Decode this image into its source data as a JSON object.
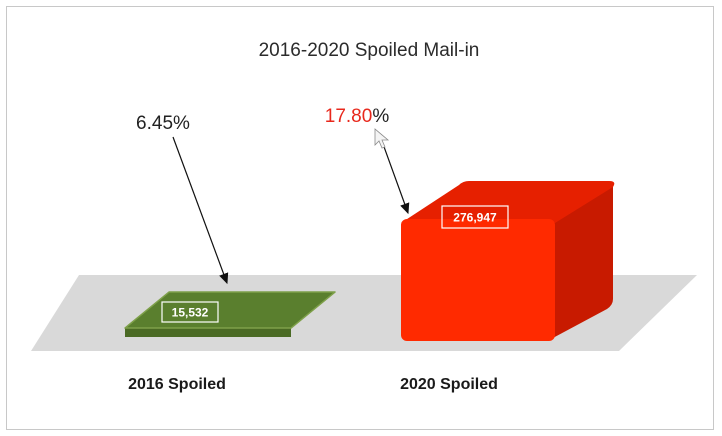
{
  "chart_data": {
    "type": "bar",
    "title": "2016-2020 Spoiled Mail-in",
    "categories": [
      "2016 Spoiled",
      "2020 Spoiled"
    ],
    "values": [
      15532,
      276947
    ],
    "value_labels": [
      "15,532",
      "276,947"
    ],
    "annotations": [
      {
        "category": "2016 Spoiled",
        "number": "6.45",
        "suffix": "%"
      },
      {
        "category": "2020 Spoiled",
        "number": "17.80",
        "suffix": "%"
      }
    ],
    "xlabel": "",
    "ylabel": "",
    "three_d": true,
    "legend": "none",
    "grid": false,
    "colors": {
      "bar_2016": "#5a7f2e",
      "bar_2016_top": "#7ea04a",
      "bar_2020_front": "#ff2a00",
      "bar_2020_top": "#e62000",
      "bar_2020_side": "#c81a00",
      "floor": "#d9d9d9",
      "annotation_2020_number": "#e8281c",
      "annotation_text": "#222222",
      "value_box_border": "#ffffff"
    }
  }
}
